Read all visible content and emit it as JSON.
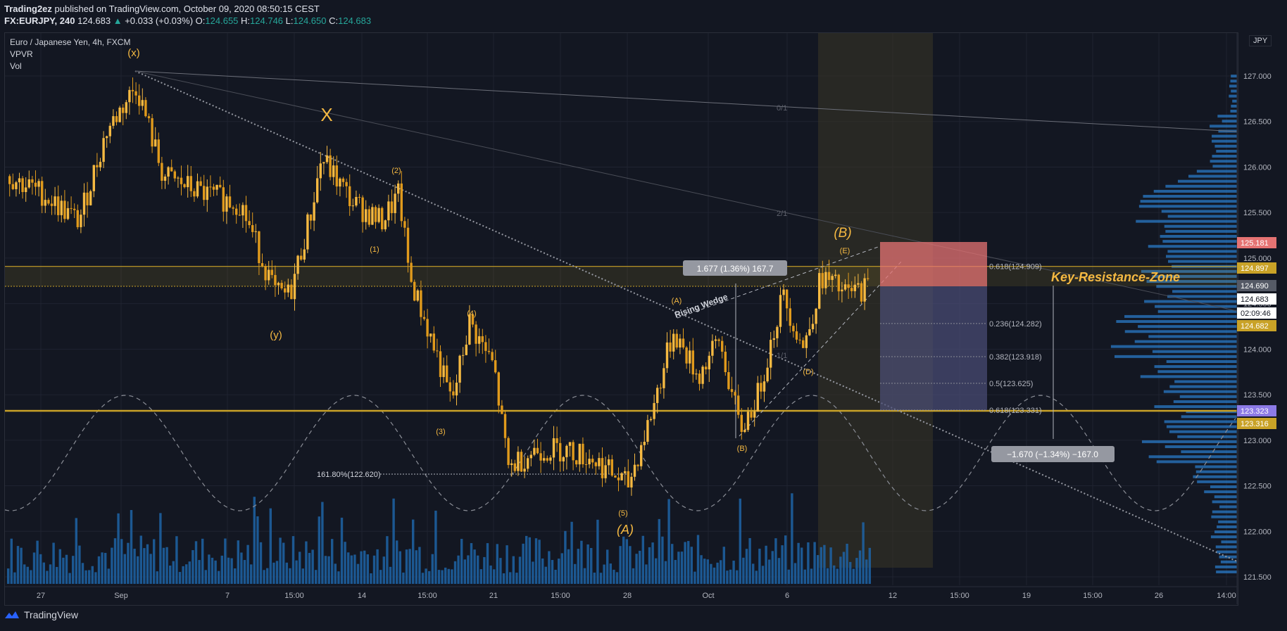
{
  "header": {
    "author": "Trading2ez",
    "published": "published on TradingView.com, October 09, 2020 08:50:15 CEST",
    "symbol": "FX:EURJPY, 240",
    "price": "124.683",
    "change": "+0.033 (+0.03%)",
    "o_label": "O:",
    "o": "124.655",
    "h_label": "H:",
    "h": "124.746",
    "l_label": "L:",
    "l": "124.650",
    "c_label": "C:",
    "c": "124.683"
  },
  "legend": {
    "title": "Euro / Japanese Yen, 4h, FXCM",
    "ind1": "VPVR",
    "ind2": "Vol"
  },
  "currency_button": "JPY",
  "footer": {
    "brand": "TradingView"
  },
  "chart_data": {
    "type": "candlestick",
    "ylim": [
      121.5,
      127.0
    ],
    "y_ticks": [
      "127.000",
      "126.500",
      "126.000",
      "125.500",
      "125.000",
      "124.500",
      "124.000",
      "123.500",
      "123.000",
      "122.500",
      "122.000",
      "121.500"
    ],
    "x_ticks": [
      "27",
      "Sep",
      "7",
      "15:00",
      "14",
      "15:00",
      "21",
      "15:00",
      "28",
      "Oct",
      "6",
      "12",
      "15:00",
      "19",
      "15:00",
      "26",
      "14:00"
    ],
    "price_badges": [
      {
        "text": "125.181",
        "color": "#e57373",
        "fg": "#ffffff"
      },
      {
        "text": "124.897",
        "color": "#c9a227",
        "fg": "#ffffff"
      },
      {
        "text": "124.690",
        "color": "#555a66",
        "fg": "#ffffff"
      },
      {
        "text": "124.683",
        "color": "#ffffff",
        "fg": "#131722"
      },
      {
        "text": "02:09:46",
        "color": "#ffffff",
        "fg": "#131722"
      },
      {
        "text": "124.682",
        "color": "#c9a227",
        "fg": "#ffffff"
      },
      {
        "text": "123.323",
        "color": "#8c7ae6",
        "fg": "#ffffff"
      },
      {
        "text": "123.316",
        "color": "#c9a227",
        "fg": "#ffffff"
      }
    ],
    "wave_labels": [
      "(x)",
      "X",
      "(y)",
      "(2)",
      "(1)",
      "(4)",
      "(3)",
      "(5)",
      "(A)",
      "(A)",
      "(B)",
      "(B)",
      "(E)",
      "(D)"
    ],
    "annotations": {
      "rising_wedge": "Rising Wedge",
      "key_zone": "Key-Resistance-Zone",
      "measure_up": "1.677 (1.36%) 167.7",
      "measure_down": "−1.670 (−1.34%) −167.0",
      "ext": "161.80%(122.620)",
      "fan_01": "0/1",
      "fan_21": "2/1",
      "fan_11": "1/1"
    },
    "fib_levels": [
      {
        "label": "0.618(124.909)",
        "value": 124.909
      },
      {
        "label": "0.236(124.282)",
        "value": 124.282
      },
      {
        "label": "0.382(123.918)",
        "value": 123.918
      },
      {
        "label": "0.5(123.625)",
        "value": 123.625
      },
      {
        "label": "0.618(123.331)",
        "value": 123.331
      }
    ],
    "key_levels": [
      124.909,
      124.69,
      123.323
    ],
    "colors": {
      "bull": "#f5b942",
      "bear": "#e09a1c",
      "volume": "#1e5f9e",
      "profile": "#2979c6",
      "zone": "#c9a227"
    }
  }
}
